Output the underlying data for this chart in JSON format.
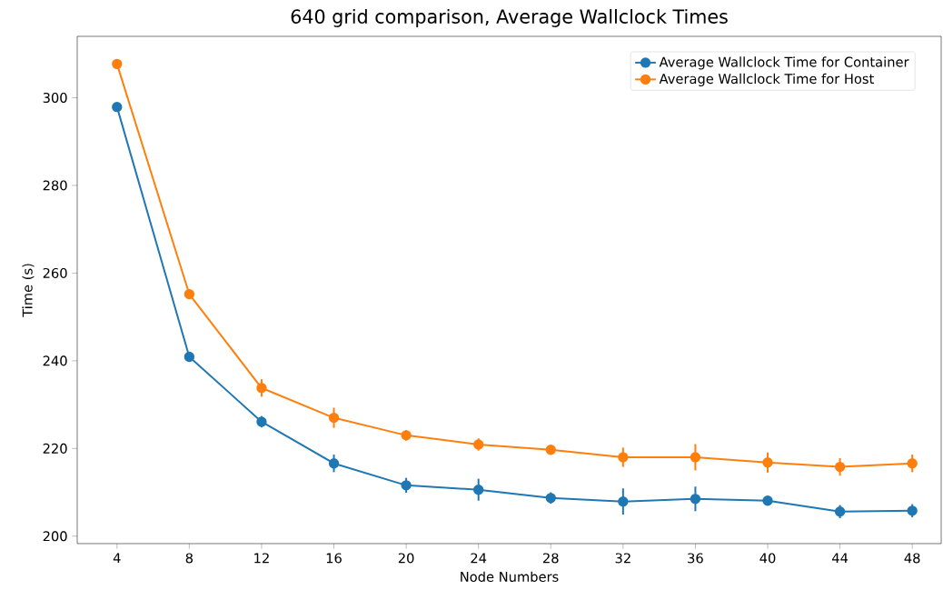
{
  "chart_data": {
    "type": "line",
    "title": "640 grid comparison, Average Wallclock Times",
    "xlabel": "Node Numbers",
    "ylabel": "Time (s)",
    "x": [
      4,
      8,
      12,
      16,
      20,
      24,
      28,
      32,
      36,
      40,
      44,
      48
    ],
    "series": [
      {
        "name": "Average Wallclock Time for Container",
        "color": "#1f77b4",
        "values": [
          297.9,
          240.9,
          226.1,
          216.6,
          211.6,
          210.6,
          208.7,
          207.9,
          208.5,
          208.1,
          205.6,
          205.8
        ],
        "errors": [
          0.5,
          0.5,
          1.3,
          2,
          1.7,
          2.5,
          1.3,
          3,
          2.8,
          0.5,
          1.5,
          1.5
        ]
      },
      {
        "name": "Average Wallclock Time for Host",
        "color": "#ff7f0e",
        "values": [
          307.7,
          255.2,
          233.8,
          227.0,
          223.0,
          220.9,
          219.7,
          218.0,
          218.0,
          216.8,
          215.8,
          216.6
        ],
        "errors": [
          0.5,
          1,
          2,
          2.3,
          1.2,
          1.4,
          1,
          2.2,
          3,
          2.3,
          2,
          2
        ]
      }
    ],
    "xlim": [
      1.8,
      49.6
    ],
    "ylim": [
      198.3,
      314
    ],
    "xticks": [
      4,
      8,
      12,
      16,
      20,
      24,
      28,
      32,
      36,
      40,
      44,
      48
    ],
    "yticks": [
      200,
      220,
      240,
      260,
      280,
      300
    ],
    "grid": false,
    "legend": "top right",
    "marker": "circle",
    "line_style": "solid"
  }
}
